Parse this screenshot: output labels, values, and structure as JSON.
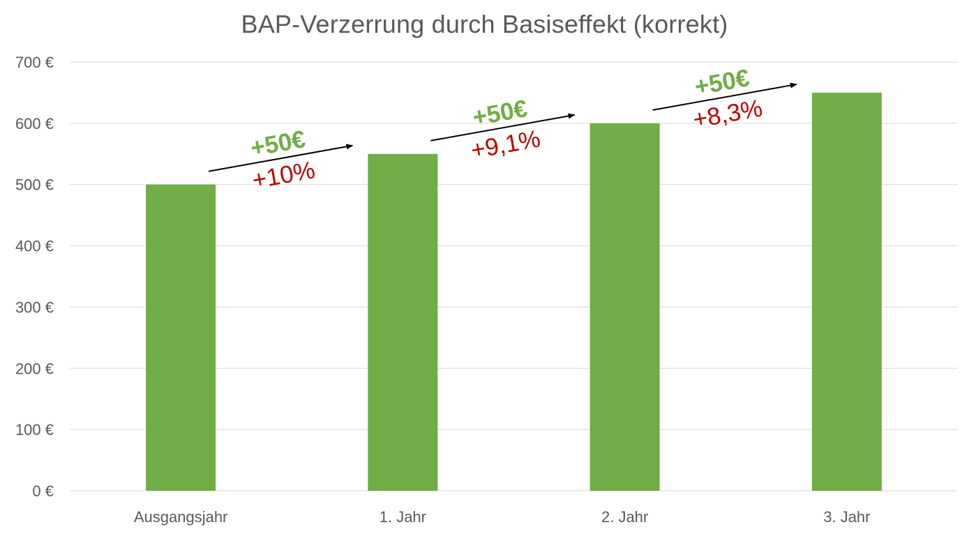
{
  "chart_data": {
    "type": "bar",
    "title": "BAP-Verzerrung durch Basiseffekt (korrekt)",
    "categories": [
      "Ausgangsjahr",
      "1. Jahr",
      "2. Jahr",
      "3. Jahr"
    ],
    "values": [
      500,
      550,
      600,
      650
    ],
    "xlabel": "",
    "ylabel": "",
    "ylim": [
      0,
      700
    ],
    "yticks": [
      0,
      100,
      200,
      300,
      400,
      500,
      600,
      700
    ],
    "ytick_labels": [
      "0 €",
      "100 €",
      "200 €",
      "300 €",
      "400 €",
      "500 €",
      "600 €",
      "700 €"
    ],
    "grid": true,
    "legend": "none",
    "bar_color": "#70AD47",
    "annotations": [
      {
        "from": "Ausgangsjahr",
        "to": "1. Jahr",
        "absolute": "+50€",
        "relative": "+10%"
      },
      {
        "from": "1. Jahr",
        "to": "2. Jahr",
        "absolute": "+50€",
        "relative": "+9,1%"
      },
      {
        "from": "2. Jahr",
        "to": "3. Jahr",
        "absolute": "+50€",
        "relative": "+8,3%"
      }
    ],
    "colors": {
      "absolute_change": "#70AD47",
      "relative_change": "#C00000",
      "arrow": "#000000",
      "grid": "#D9D9D9",
      "text": "#595959"
    }
  }
}
